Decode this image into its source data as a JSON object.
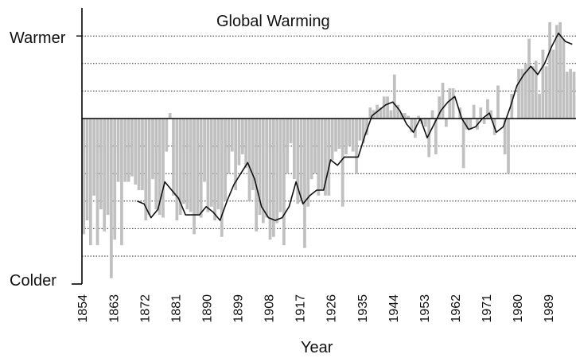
{
  "chart_data": {
    "type": "bar",
    "title": "Global Warming",
    "xlabel": "Year",
    "ylabel_top": "Warmer",
    "ylabel_bottom": "Colder",
    "x_range": [
      1854,
      1996
    ],
    "x_ticks": [
      1854,
      1863,
      1872,
      1881,
      1890,
      1899,
      1908,
      1917,
      1926,
      1935,
      1944,
      1953,
      1962,
      1971,
      1980,
      1989
    ],
    "ylim": [
      -6,
      3
    ],
    "gridlines": [
      3,
      2,
      1,
      -1,
      -2,
      -3,
      -4,
      -5
    ],
    "series": [
      {
        "style": "bars",
        "color": "#c0c0c0",
        "x": [
          1854,
          1855,
          1856,
          1857,
          1858,
          1859,
          1860,
          1861,
          1862,
          1863,
          1864,
          1865,
          1866,
          1867,
          1868,
          1869,
          1870,
          1871,
          1872,
          1873,
          1874,
          1875,
          1876,
          1877,
          1878,
          1879,
          1880,
          1881,
          1882,
          1883,
          1884,
          1885,
          1886,
          1887,
          1888,
          1889,
          1890,
          1891,
          1892,
          1893,
          1894,
          1895,
          1896,
          1897,
          1898,
          1899,
          1900,
          1901,
          1902,
          1903,
          1904,
          1905,
          1906,
          1907,
          1908,
          1909,
          1910,
          1911,
          1912,
          1913,
          1914,
          1915,
          1916,
          1917,
          1918,
          1919,
          1920,
          1921,
          1922,
          1923,
          1924,
          1925,
          1926,
          1927,
          1928,
          1929,
          1930,
          1931,
          1932,
          1933,
          1934,
          1935,
          1936,
          1937,
          1938,
          1939,
          1940,
          1941,
          1942,
          1943,
          1944,
          1945,
          1946,
          1947,
          1948,
          1949,
          1950,
          1951,
          1952,
          1953,
          1954,
          1955,
          1956,
          1957,
          1958,
          1959,
          1960,
          1961,
          1962,
          1963,
          1964,
          1965,
          1966,
          1967,
          1968,
          1969,
          1970,
          1971,
          1972,
          1973,
          1974,
          1975,
          1976,
          1977,
          1978,
          1979,
          1980,
          1981,
          1982,
          1983,
          1984,
          1985,
          1986,
          1987,
          1988,
          1989,
          1990,
          1991,
          1992,
          1993,
          1994,
          1995,
          1996
        ],
        "values": [
          -4.2,
          -3.7,
          -4.6,
          -2.8,
          -4.6,
          -3.3,
          -4.1,
          -3.5,
          -5.8,
          -4.4,
          -2.3,
          -4.6,
          -2.3,
          -2.3,
          -2.1,
          -2.4,
          -2.6,
          -2.6,
          -3.7,
          -3.5,
          -2.2,
          -3.3,
          -3.5,
          -3.6,
          -1.2,
          0.2,
          -2.8,
          -3.7,
          -3.5,
          -3.1,
          -3.3,
          -3.4,
          -4.2,
          -3.5,
          -3.6,
          -2.3,
          -3.4,
          -3.2,
          -3.7,
          -3.3,
          -4.3,
          -3.0,
          -2.0,
          -1.2,
          -2.6,
          -1.7,
          -1.3,
          -1.8,
          -3.0,
          -2.6,
          -4.1,
          -3.5,
          -3.8,
          -3.6,
          -4.4,
          -4.3,
          -3.8,
          -3.4,
          -4.6,
          -2.0,
          -0.9,
          -2.2,
          -3.1,
          -3.0,
          -4.7,
          -3.2,
          -2.2,
          -2.0,
          -2.8,
          -2.6,
          -2.8,
          -2.8,
          -1.5,
          -1.2,
          -1.1,
          -3.2,
          -1.3,
          -1.0,
          -1.2,
          -2.0,
          -0.8,
          -0.9,
          -0.6,
          0.4,
          0.3,
          0.5,
          0.4,
          0.8,
          0.8,
          0.3,
          1.6,
          0.5,
          0.2,
          0.2,
          0.1,
          -0.5,
          -0.7,
          0.1,
          -0.2,
          -0.3,
          -1.4,
          0.3,
          -1.3,
          0.8,
          1.3,
          -0.3,
          1.1,
          1.1,
          0.0,
          0.4,
          -1.8,
          -0.4,
          -0.4,
          0.5,
          -0.4,
          0.4,
          -0.2,
          0.7,
          0.3,
          -0.6,
          1.2,
          0.0,
          -1.3,
          -2.0,
          0.9,
          0.0,
          1.8,
          1.8,
          2.0,
          2.9,
          1.9,
          2.1,
          0.9,
          2.5,
          1.9,
          3.5,
          2.5,
          3.4,
          3.5,
          2.9,
          1.7,
          1.8,
          1.7
        ]
      },
      {
        "style": "line",
        "name": "",
        "color": "#111111",
        "x": [
          1870,
          1872,
          1874,
          1876,
          1878,
          1880,
          1882,
          1884,
          1886,
          1888,
          1890,
          1892,
          1894,
          1896,
          1898,
          1900,
          1902,
          1904,
          1906,
          1908,
          1910,
          1912,
          1914,
          1916,
          1918,
          1920,
          1922,
          1924,
          1926,
          1928,
          1930,
          1932,
          1934,
          1936,
          1938,
          1940,
          1942,
          1944,
          1946,
          1948,
          1950,
          1952,
          1954,
          1956,
          1958,
          1960,
          1962,
          1964,
          1966,
          1968,
          1970,
          1972,
          1974,
          1976,
          1978,
          1980,
          1982,
          1984,
          1986,
          1988,
          1990,
          1992,
          1994,
          1996
        ],
        "values": [
          -3.0,
          -3.1,
          -3.6,
          -3.3,
          -2.3,
          -2.6,
          -2.9,
          -3.5,
          -3.5,
          -3.5,
          -3.2,
          -3.4,
          -3.7,
          -3.0,
          -2.4,
          -2.0,
          -1.6,
          -2.2,
          -3.2,
          -3.6,
          -3.7,
          -3.6,
          -3.2,
          -2.3,
          -3.1,
          -2.8,
          -2.6,
          -2.6,
          -1.5,
          -1.7,
          -1.4,
          -1.4,
          -1.4,
          -0.6,
          0.1,
          0.3,
          0.5,
          0.6,
          0.3,
          -0.2,
          -0.5,
          0.0,
          -0.7,
          -0.2,
          0.3,
          0.6,
          0.8,
          0.0,
          -0.4,
          -0.3,
          0.0,
          0.2,
          -0.5,
          -0.3,
          0.4,
          1.2,
          1.6,
          1.9,
          1.6,
          2.0,
          2.6,
          3.1,
          2.8,
          2.7
        ]
      }
    ]
  }
}
